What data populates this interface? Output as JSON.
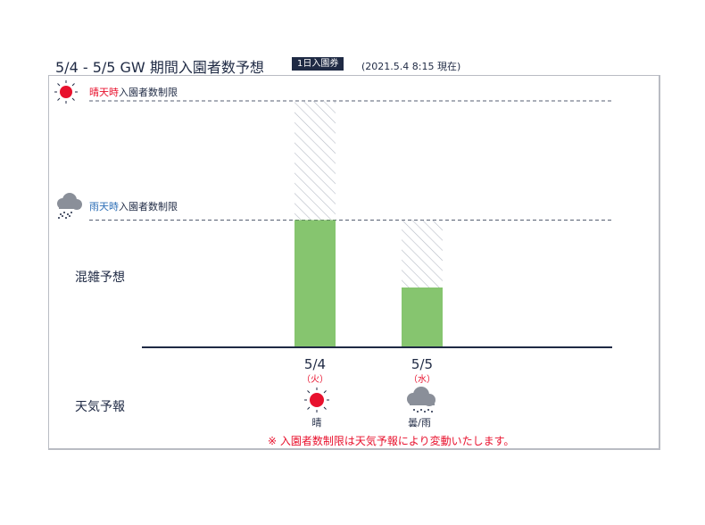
{
  "header": {
    "title": "5/4 - 5/5 GW 期間入園者数予想",
    "ticket_badge": "1日入園券",
    "as_of": "(2021.5.4 8:15 現在)"
  },
  "chart_data": {
    "type": "bar",
    "categories": [
      "5/4",
      "5/5"
    ],
    "weekdays": [
      "（火）",
      "（水）"
    ],
    "series": [
      {
        "values": [
          0.515,
          0.24
        ]
      }
    ],
    "limit_shown": [
      "sunny",
      "rainy"
    ],
    "limits": {
      "sunny": {
        "prefix": "晴天時",
        "suffix": "入園者数制限",
        "value": 1.0,
        "color": "#e8112d"
      },
      "rainy": {
        "prefix": "雨天時",
        "suffix": "入園者数制限",
        "value": 0.515,
        "color": "#2e6fb7"
      }
    },
    "ylim": [
      0,
      1
    ],
    "row_labels": {
      "crowd": "混雑予想",
      "weather": "天気予報"
    },
    "weather": [
      {
        "icon": "sun-icon",
        "label": "晴"
      },
      {
        "icon": "cloud-rain-icon",
        "label": "曇/雨"
      }
    ],
    "note": "※ 入園者数制限は天気予報により変動いたします。",
    "colors": {
      "bar": "#86c56f",
      "navy": "#1f2a44",
      "hatch": "#b7bcc6",
      "accent_red": "#e8112d"
    }
  }
}
